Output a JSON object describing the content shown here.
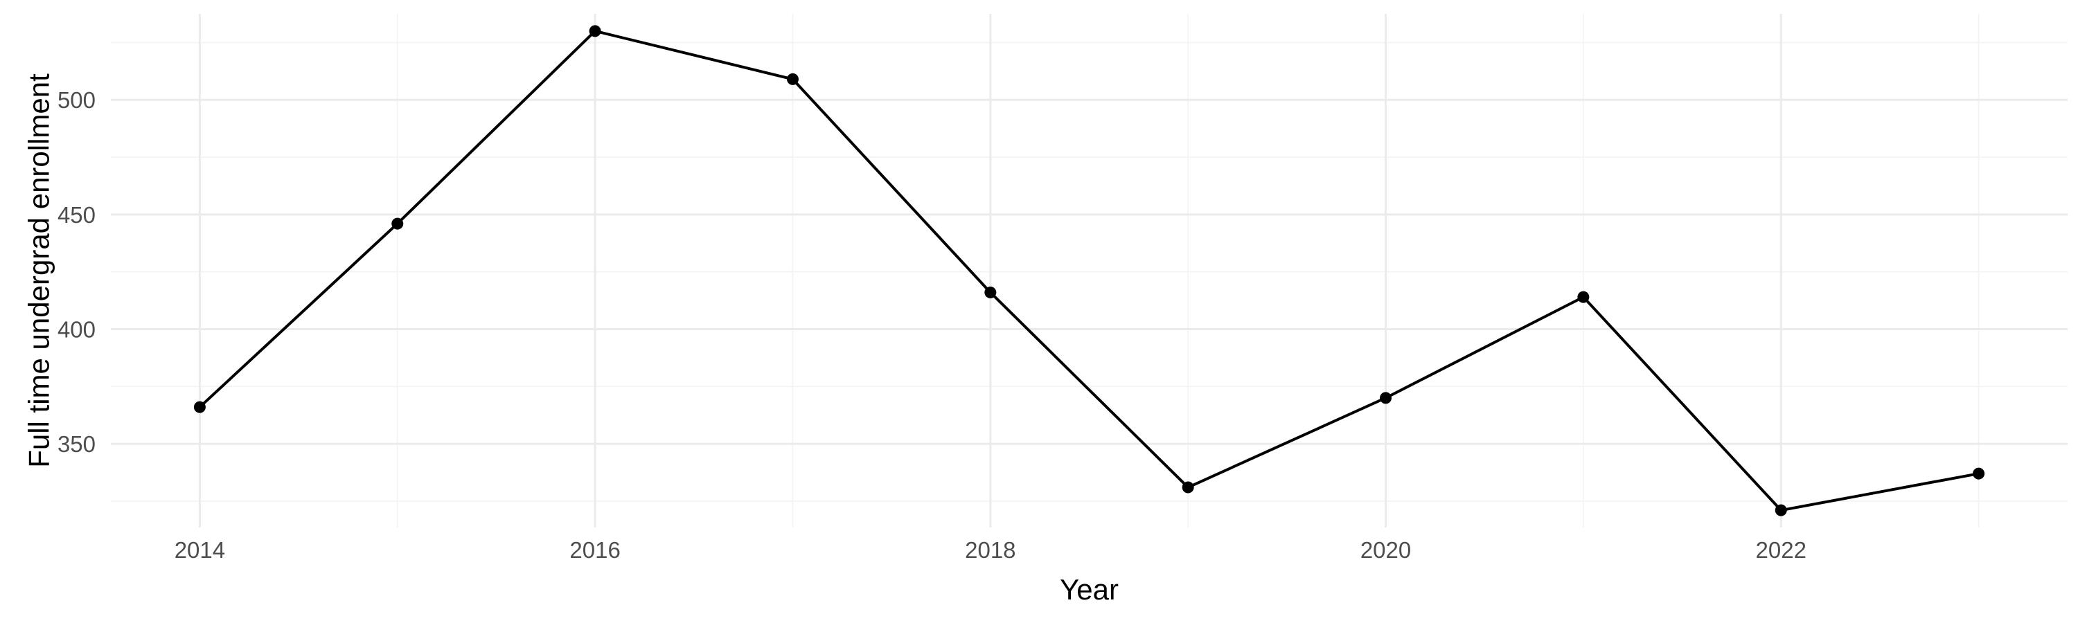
{
  "chart_data": {
    "type": "line",
    "x": [
      2014,
      2015,
      2016,
      2017,
      2018,
      2019,
      2020,
      2021,
      2022,
      2023
    ],
    "series": [
      {
        "values": [
          366,
          446,
          530,
          509,
          416,
          331,
          370,
          414,
          321,
          337
        ]
      }
    ],
    "xlabel": "Year",
    "ylabel": "Full time undergrad enrollment",
    "x_ticks": [
      "2014",
      "2016",
      "2018",
      "2020",
      "2022"
    ],
    "y_ticks": [
      "350",
      "400",
      "450",
      "500"
    ],
    "x_tick_values": [
      2014,
      2016,
      2018,
      2020,
      2022
    ],
    "y_tick_values": [
      350,
      400,
      450,
      500
    ],
    "xlim": [
      2013.55,
      2023.45
    ],
    "ylim": [
      313.5,
      537.5
    ],
    "grid": true,
    "legend": "none",
    "line_color": "#000000",
    "point_color": "#000000"
  }
}
